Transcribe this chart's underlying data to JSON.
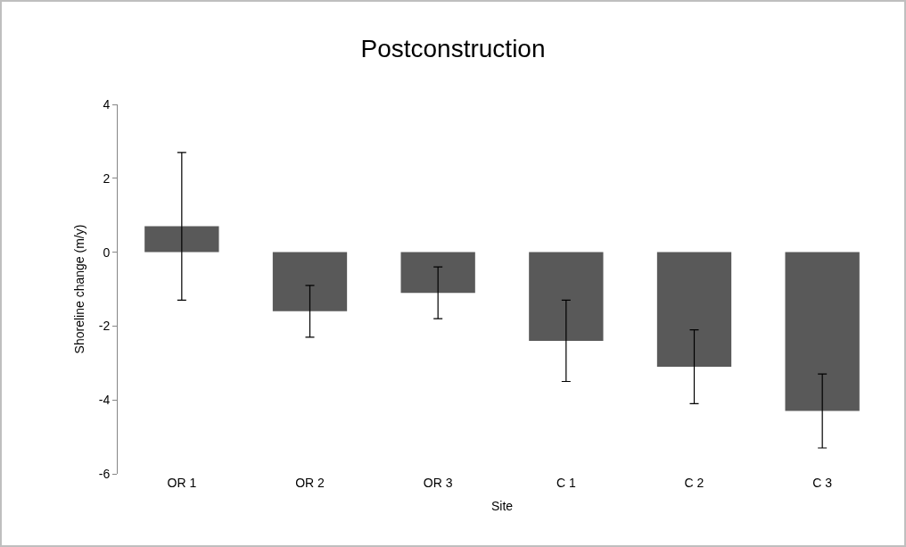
{
  "chart_data": {
    "type": "bar",
    "title": "Postconstruction",
    "xlabel": "Site",
    "ylabel": "Shoreline change (m/y)",
    "categories": [
      "OR 1",
      "OR 2",
      "OR 3",
      "C 1",
      "C 2",
      "C 3"
    ],
    "values": [
      0.7,
      -1.6,
      -1.1,
      -2.4,
      -3.1,
      -4.3
    ],
    "errors": [
      2.0,
      0.7,
      0.7,
      1.1,
      1.0,
      1.0
    ],
    "color": "#595959",
    "ylim": [
      -6,
      4
    ],
    "yticks": [
      -6,
      -4,
      -2,
      0,
      2,
      4
    ],
    "grid": false,
    "legend": false
  }
}
